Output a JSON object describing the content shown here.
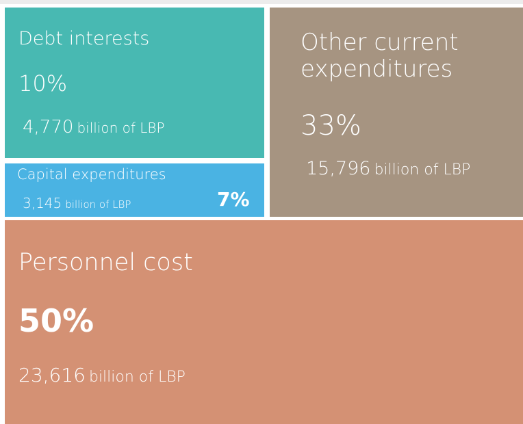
{
  "chart_data": {
    "type": "treemap",
    "categories": [
      "Debt interests",
      "Capital expenditures",
      "Other current expenditures",
      "Personnel cost"
    ],
    "values": [
      10,
      7,
      33,
      50
    ],
    "value_labels": [
      "10%",
      "7%",
      "33%",
      "50%"
    ],
    "amounts": [
      4770,
      3145,
      15796,
      23616
    ],
    "amount_labels": [
      "4,770",
      "3,145",
      "15,796",
      "23,616"
    ],
    "unit": "billion of LBP",
    "colors": [
      "#48b9b2",
      "#4ab3e3",
      "#a69481",
      "#d49174"
    ]
  }
}
